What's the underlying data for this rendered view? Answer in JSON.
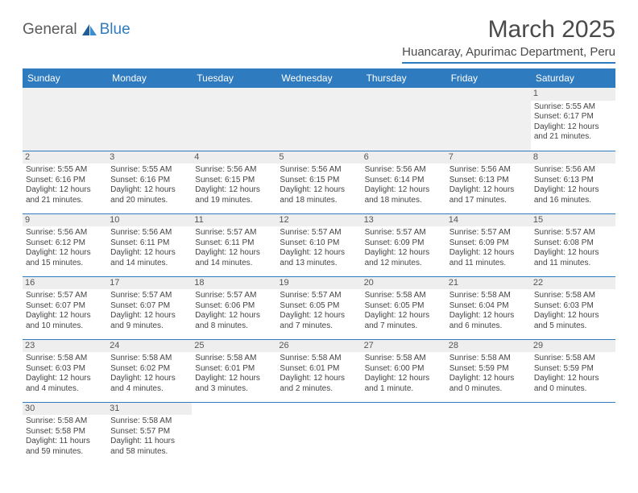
{
  "logo": {
    "text1": "General",
    "text2": "Blue"
  },
  "title": "March 2025",
  "location": "Huancaray, Apurimac Department, Peru",
  "colors": {
    "accent": "#2f7bbf",
    "header_text": "#ffffff",
    "daynum_bg": "#eeeeee",
    "body_text": "#444444"
  },
  "weekdays": [
    "Sunday",
    "Monday",
    "Tuesday",
    "Wednesday",
    "Thursday",
    "Friday",
    "Saturday"
  ],
  "days": {
    "1": {
      "sunrise": "5:55 AM",
      "sunset": "6:17 PM",
      "daylight": "12 hours and 21 minutes."
    },
    "2": {
      "sunrise": "5:55 AM",
      "sunset": "6:16 PM",
      "daylight": "12 hours and 21 minutes."
    },
    "3": {
      "sunrise": "5:55 AM",
      "sunset": "6:16 PM",
      "daylight": "12 hours and 20 minutes."
    },
    "4": {
      "sunrise": "5:56 AM",
      "sunset": "6:15 PM",
      "daylight": "12 hours and 19 minutes."
    },
    "5": {
      "sunrise": "5:56 AM",
      "sunset": "6:15 PM",
      "daylight": "12 hours and 18 minutes."
    },
    "6": {
      "sunrise": "5:56 AM",
      "sunset": "6:14 PM",
      "daylight": "12 hours and 18 minutes."
    },
    "7": {
      "sunrise": "5:56 AM",
      "sunset": "6:13 PM",
      "daylight": "12 hours and 17 minutes."
    },
    "8": {
      "sunrise": "5:56 AM",
      "sunset": "6:13 PM",
      "daylight": "12 hours and 16 minutes."
    },
    "9": {
      "sunrise": "5:56 AM",
      "sunset": "6:12 PM",
      "daylight": "12 hours and 15 minutes."
    },
    "10": {
      "sunrise": "5:56 AM",
      "sunset": "6:11 PM",
      "daylight": "12 hours and 14 minutes."
    },
    "11": {
      "sunrise": "5:57 AM",
      "sunset": "6:11 PM",
      "daylight": "12 hours and 14 minutes."
    },
    "12": {
      "sunrise": "5:57 AM",
      "sunset": "6:10 PM",
      "daylight": "12 hours and 13 minutes."
    },
    "13": {
      "sunrise": "5:57 AM",
      "sunset": "6:09 PM",
      "daylight": "12 hours and 12 minutes."
    },
    "14": {
      "sunrise": "5:57 AM",
      "sunset": "6:09 PM",
      "daylight": "12 hours and 11 minutes."
    },
    "15": {
      "sunrise": "5:57 AM",
      "sunset": "6:08 PM",
      "daylight": "12 hours and 11 minutes."
    },
    "16": {
      "sunrise": "5:57 AM",
      "sunset": "6:07 PM",
      "daylight": "12 hours and 10 minutes."
    },
    "17": {
      "sunrise": "5:57 AM",
      "sunset": "6:07 PM",
      "daylight": "12 hours and 9 minutes."
    },
    "18": {
      "sunrise": "5:57 AM",
      "sunset": "6:06 PM",
      "daylight": "12 hours and 8 minutes."
    },
    "19": {
      "sunrise": "5:57 AM",
      "sunset": "6:05 PM",
      "daylight": "12 hours and 7 minutes."
    },
    "20": {
      "sunrise": "5:58 AM",
      "sunset": "6:05 PM",
      "daylight": "12 hours and 7 minutes."
    },
    "21": {
      "sunrise": "5:58 AM",
      "sunset": "6:04 PM",
      "daylight": "12 hours and 6 minutes."
    },
    "22": {
      "sunrise": "5:58 AM",
      "sunset": "6:03 PM",
      "daylight": "12 hours and 5 minutes."
    },
    "23": {
      "sunrise": "5:58 AM",
      "sunset": "6:03 PM",
      "daylight": "12 hours and 4 minutes."
    },
    "24": {
      "sunrise": "5:58 AM",
      "sunset": "6:02 PM",
      "daylight": "12 hours and 4 minutes."
    },
    "25": {
      "sunrise": "5:58 AM",
      "sunset": "6:01 PM",
      "daylight": "12 hours and 3 minutes."
    },
    "26": {
      "sunrise": "5:58 AM",
      "sunset": "6:01 PM",
      "daylight": "12 hours and 2 minutes."
    },
    "27": {
      "sunrise": "5:58 AM",
      "sunset": "6:00 PM",
      "daylight": "12 hours and 1 minute."
    },
    "28": {
      "sunrise": "5:58 AM",
      "sunset": "5:59 PM",
      "daylight": "12 hours and 0 minutes."
    },
    "29": {
      "sunrise": "5:58 AM",
      "sunset": "5:59 PM",
      "daylight": "12 hours and 0 minutes."
    },
    "30": {
      "sunrise": "5:58 AM",
      "sunset": "5:58 PM",
      "daylight": "11 hours and 59 minutes."
    },
    "31": {
      "sunrise": "5:58 AM",
      "sunset": "5:57 PM",
      "daylight": "11 hours and 58 minutes."
    }
  },
  "labels": {
    "sunrise": "Sunrise: ",
    "sunset": "Sunset: ",
    "daylight": "Daylight: "
  },
  "grid": [
    [
      null,
      null,
      null,
      null,
      null,
      null,
      "1"
    ],
    [
      "2",
      "3",
      "4",
      "5",
      "6",
      "7",
      "8"
    ],
    [
      "9",
      "10",
      "11",
      "12",
      "13",
      "14",
      "15"
    ],
    [
      "16",
      "17",
      "18",
      "19",
      "20",
      "21",
      "22"
    ],
    [
      "23",
      "24",
      "25",
      "26",
      "27",
      "28",
      "29"
    ],
    [
      "30",
      "31",
      null,
      null,
      null,
      null,
      null
    ]
  ]
}
